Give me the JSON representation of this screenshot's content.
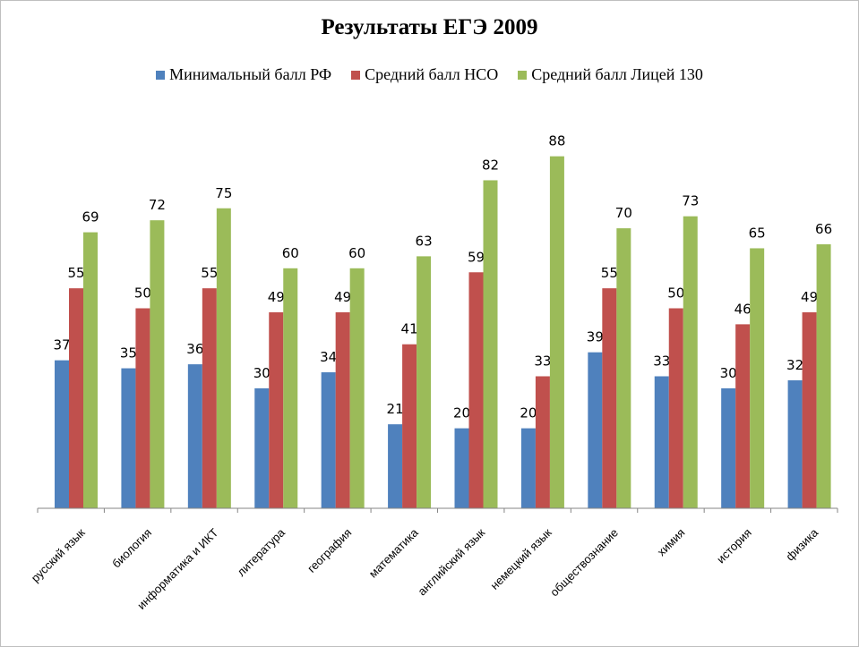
{
  "chart_data": {
    "type": "bar",
    "title": "Результаты ЕГЭ 2009",
    "xlabel": "",
    "ylabel": "",
    "ylim": [
      0,
      88
    ],
    "grid": false,
    "legend_position": "top",
    "categories": [
      "русский язык",
      "биология",
      "информатика и ИКТ",
      "литература",
      "география",
      "математика",
      "английский язык",
      "немецкий язык",
      "обществознание",
      "химия",
      "история",
      "физика"
    ],
    "series": [
      {
        "name": "Минимальный балл РФ",
        "color": "#4f81bd",
        "values": [
          37,
          35,
          36,
          30,
          34,
          21,
          20,
          20,
          39,
          33,
          30,
          32
        ]
      },
      {
        "name": "Средний балл НСО",
        "color": "#c0504d",
        "values": [
          55,
          50,
          55,
          49,
          49,
          41,
          59,
          33,
          55,
          50,
          46,
          49
        ]
      },
      {
        "name": "Средний балл Лицей 130",
        "color": "#9bbb59",
        "values": [
          69,
          72,
          75,
          60,
          60,
          63,
          82,
          88,
          70,
          73,
          65,
          66
        ]
      }
    ]
  }
}
